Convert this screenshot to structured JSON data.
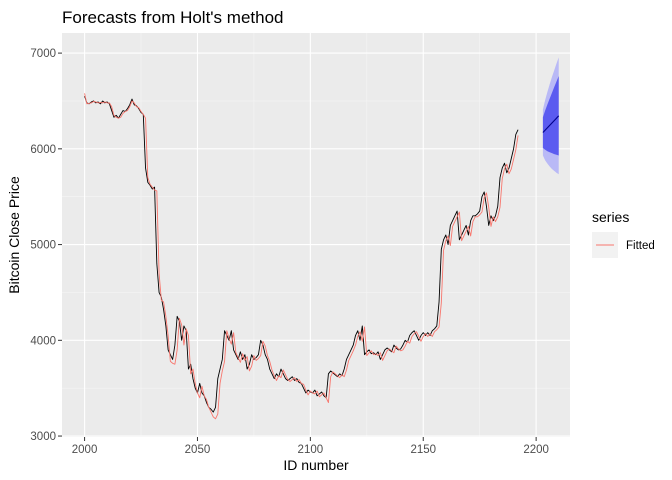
{
  "chart_data": {
    "type": "line",
    "title": "Forecasts from Holt's method",
    "xlabel": "ID number",
    "ylabel": "Bitcoin Close Price",
    "xlim": [
      1990,
      2215
    ],
    "ylim": [
      2990,
      7210
    ],
    "x_ticks": [
      2000,
      2050,
      2100,
      2150,
      2200
    ],
    "y_ticks": [
      3000,
      4000,
      5000,
      6000,
      7000
    ],
    "grid": true,
    "legend": {
      "title": "series",
      "placement": "right",
      "entries": [
        {
          "label": "Fitted",
          "color": "#f8766d"
        }
      ]
    },
    "colors": {
      "actual": "#000000",
      "fitted": "#f8766d",
      "forecast_line": "#00008b",
      "pi80": "#5b5bf0",
      "pi95": "#b9b9f6",
      "panel_bg": "#ebebeb",
      "grid_major": "#ffffff"
    },
    "actual": {
      "x_start": 2000,
      "values": [
        6550,
        6480,
        6470,
        6490,
        6500,
        6480,
        6490,
        6470,
        6500,
        6480,
        6490,
        6470,
        6400,
        6330,
        6350,
        6320,
        6360,
        6400,
        6390,
        6420,
        6460,
        6520,
        6460,
        6450,
        6420,
        6380,
        6360,
        5800,
        5650,
        5620,
        5580,
        5600,
        4800,
        4500,
        4450,
        4320,
        4150,
        3900,
        3850,
        3800,
        3950,
        4250,
        4200,
        4000,
        4150,
        4100,
        3700,
        3750,
        3600,
        3500,
        3450,
        3550,
        3450,
        3420,
        3350,
        3300,
        3280,
        3250,
        3300,
        3600,
        3700,
        3800,
        4100,
        4050,
        4000,
        4100,
        3900,
        3850,
        3800,
        3880,
        3800,
        3850,
        3700,
        3750,
        3850,
        3800,
        3820,
        3850,
        4000,
        3950,
        3850,
        3800,
        3700,
        3650,
        3600,
        3650,
        3620,
        3700,
        3650,
        3600,
        3580,
        3600,
        3620,
        3580,
        3600,
        3560,
        3550,
        3500,
        3450,
        3480,
        3460,
        3450,
        3480,
        3420,
        3440,
        3460,
        3420,
        3400,
        3650,
        3680,
        3660,
        3640,
        3620,
        3650,
        3630,
        3700,
        3800,
        3850,
        3900,
        3950,
        4050,
        4100,
        4000,
        4150,
        3850,
        3880,
        3900,
        3860,
        3870,
        3850,
        3880,
        3800,
        3850,
        3900,
        3920,
        3900,
        3880,
        3950,
        3920,
        3900,
        3910,
        3950,
        4000,
        3980,
        4050,
        4080,
        4100,
        4050,
        4000,
        4050,
        4080,
        4050,
        4080,
        4050,
        4100,
        4120,
        4150,
        4400,
        4950,
        5050,
        5100,
        5000,
        5200,
        5250,
        5300,
        5350,
        5050,
        5100,
        5150,
        5200,
        5100,
        5250,
        5300,
        5300,
        5320,
        5350,
        5500,
        5550,
        5400,
        5200,
        5300,
        5250,
        5300,
        5400,
        5700,
        5800,
        5850,
        5750,
        5800,
        5900,
        6000,
        6150,
        6200
      ]
    },
    "fitted": {
      "x_start": 2000,
      "values": [
        6580,
        6470,
        6475,
        6480,
        6495,
        6490,
        6480,
        6485,
        6480,
        6490,
        6480,
        6480,
        6440,
        6350,
        6330,
        6320,
        6330,
        6370,
        6390,
        6400,
        6440,
        6500,
        6480,
        6440,
        6430,
        6390,
        6360,
        6320,
        5700,
        5630,
        5600,
        5570,
        5560,
        4700,
        4420,
        4400,
        4250,
        4050,
        3780,
        3760,
        3750,
        3900,
        4230,
        4160,
        3950,
        4120,
        4050,
        3650,
        3700,
        3550,
        3450,
        3400,
        3520,
        3420,
        3380,
        3300,
        3250,
        3200,
        3180,
        3230,
        3550,
        3680,
        3780,
        4100,
        4020,
        3960,
        4080,
        3870,
        3820,
        3770,
        3860,
        3790,
        3830,
        3680,
        3730,
        3840,
        3790,
        3810,
        3840,
        3990,
        3940,
        3840,
        3780,
        3690,
        3630,
        3580,
        3630,
        3610,
        3690,
        3640,
        3590,
        3570,
        3590,
        3610,
        3570,
        3590,
        3550,
        3540,
        3480,
        3430,
        3470,
        3450,
        3440,
        3470,
        3410,
        3430,
        3450,
        3400,
        3350,
        3620,
        3670,
        3650,
        3630,
        3610,
        3640,
        3620,
        3690,
        3790,
        3840,
        3890,
        3950,
        4040,
        4090,
        3990,
        4140,
        3840,
        3870,
        3890,
        3850,
        3860,
        3840,
        3870,
        3790,
        3840,
        3890,
        3910,
        3890,
        3870,
        3940,
        3910,
        3890,
        3900,
        3940,
        3990,
        3970,
        4040,
        4070,
        4090,
        4040,
        3990,
        4040,
        4070,
        4040,
        4070,
        4040,
        4090,
        4110,
        4140,
        4390,
        4940,
        5040,
        5090,
        4990,
        5190,
        5240,
        5290,
        5340,
        5040,
        5090,
        5140,
        5190,
        5090,
        5240,
        5290,
        5290,
        5310,
        5340,
        5490,
        5540,
        5390,
        5190,
        5290,
        5240,
        5290,
        5390,
        5690,
        5790,
        5840,
        5740,
        5790,
        5890,
        5990,
        6140
      ]
    },
    "forecast": {
      "x": [
        2203,
        2204,
        2205,
        2206,
        2207,
        2208,
        2209,
        2210
      ],
      "mean": [
        6170,
        6195,
        6220,
        6245,
        6270,
        6295,
        6320,
        6345
      ],
      "lo80": [
        6010,
        5990,
        5975,
        5965,
        5955,
        5945,
        5938,
        5930
      ],
      "hi80": [
        6330,
        6400,
        6465,
        6525,
        6585,
        6645,
        6702,
        6760
      ],
      "lo95": [
        5930,
        5880,
        5845,
        5815,
        5790,
        5770,
        5750,
        5735
      ],
      "hi95": [
        6410,
        6510,
        6595,
        6675,
        6750,
        6820,
        6890,
        6955
      ]
    }
  }
}
